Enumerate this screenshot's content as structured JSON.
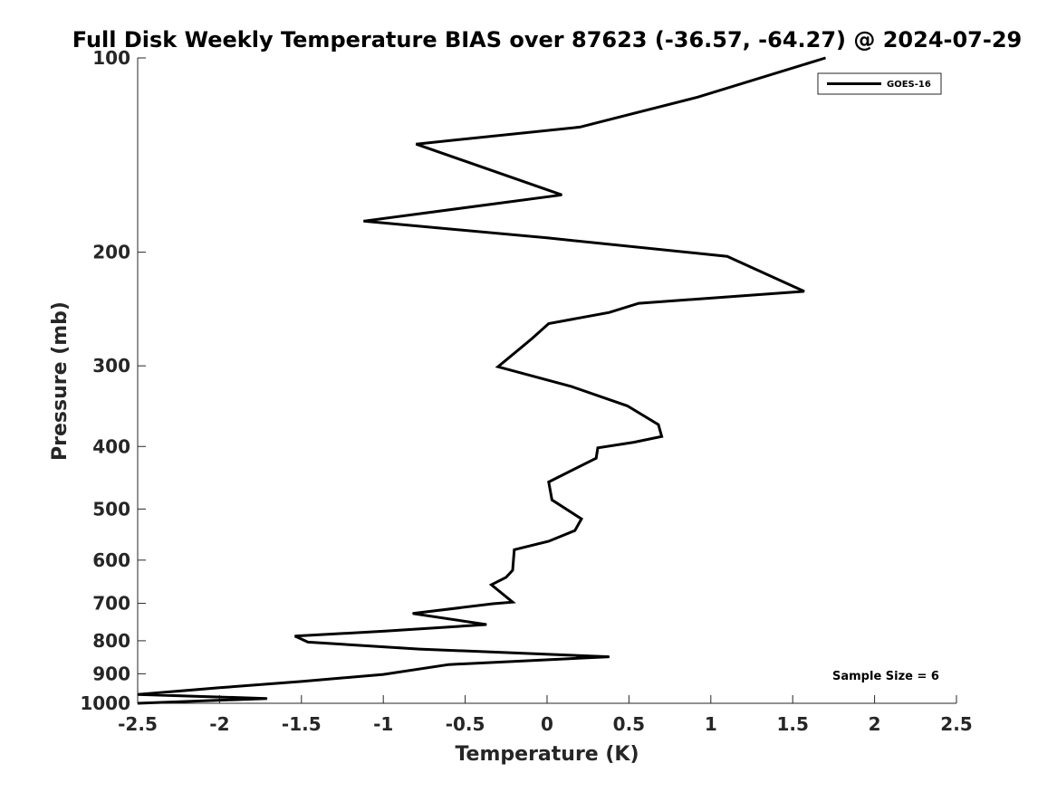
{
  "chart_data": {
    "type": "line",
    "title": "Full Disk Weekly Temperature BIAS over 87623 (-36.57, -64.27) @ 2024-07-29",
    "xlabel": "Temperature (K)",
    "ylabel": "Pressure (mb)",
    "xlim": [
      -2.5,
      2.5
    ],
    "ylim": [
      100,
      1000
    ],
    "y_scale": "log",
    "y_reversed": true,
    "x_ticks": [
      -2.5,
      -2,
      -1.5,
      -1,
      -0.5,
      0,
      0.5,
      1,
      1.5,
      2,
      2.5
    ],
    "x_tick_labels": [
      "-2.5",
      "-2",
      "-1.5",
      "-1",
      "-0.5",
      "0",
      "0.5",
      "1",
      "1.5",
      "2",
      "2.5"
    ],
    "y_ticks": [
      100,
      200,
      300,
      400,
      500,
      600,
      700,
      800,
      900,
      1000
    ],
    "y_tick_labels": [
      "100",
      "200",
      "300",
      "400",
      "500",
      "600",
      "700",
      "800",
      "900",
      "1000"
    ],
    "grid": false,
    "legend_position": "top-right",
    "series": [
      {
        "name": "GOES-16",
        "color": "#000000",
        "x": [
          1.7,
          0.92,
          0.2,
          -0.8,
          0.09,
          -1.12,
          0.0,
          1.1,
          1.57,
          0.56,
          0.38,
          0.01,
          -0.09,
          -0.3,
          0.15,
          0.49,
          0.68,
          0.7,
          0.53,
          0.31,
          0.3,
          0.01,
          0.03,
          0.21,
          0.17,
          0.01,
          -0.2,
          -0.21,
          -0.25,
          -0.34,
          -0.21,
          -0.33,
          -0.82,
          -0.37,
          -0.99,
          -1.54,
          -1.46,
          -0.78,
          0.38,
          -0.6,
          -1.0,
          -1.5,
          -2.0,
          -2.5,
          -1.71,
          -2.5
        ],
        "y": [
          100,
          115,
          128,
          136,
          163,
          179,
          190,
          203,
          230,
          240,
          248,
          258,
          272,
          301,
          323,
          346,
          370,
          386,
          394,
          402,
          417,
          454,
          484,
          518,
          540,
          561,
          578,
          622,
          638,
          655,
          697,
          701,
          726,
          755,
          773,
          787,
          804,
          824,
          847,
          871,
          902,
          925,
          946,
          969,
          983,
          1000
        ]
      }
    ],
    "annotations": [
      "Sample Size = 6"
    ]
  }
}
